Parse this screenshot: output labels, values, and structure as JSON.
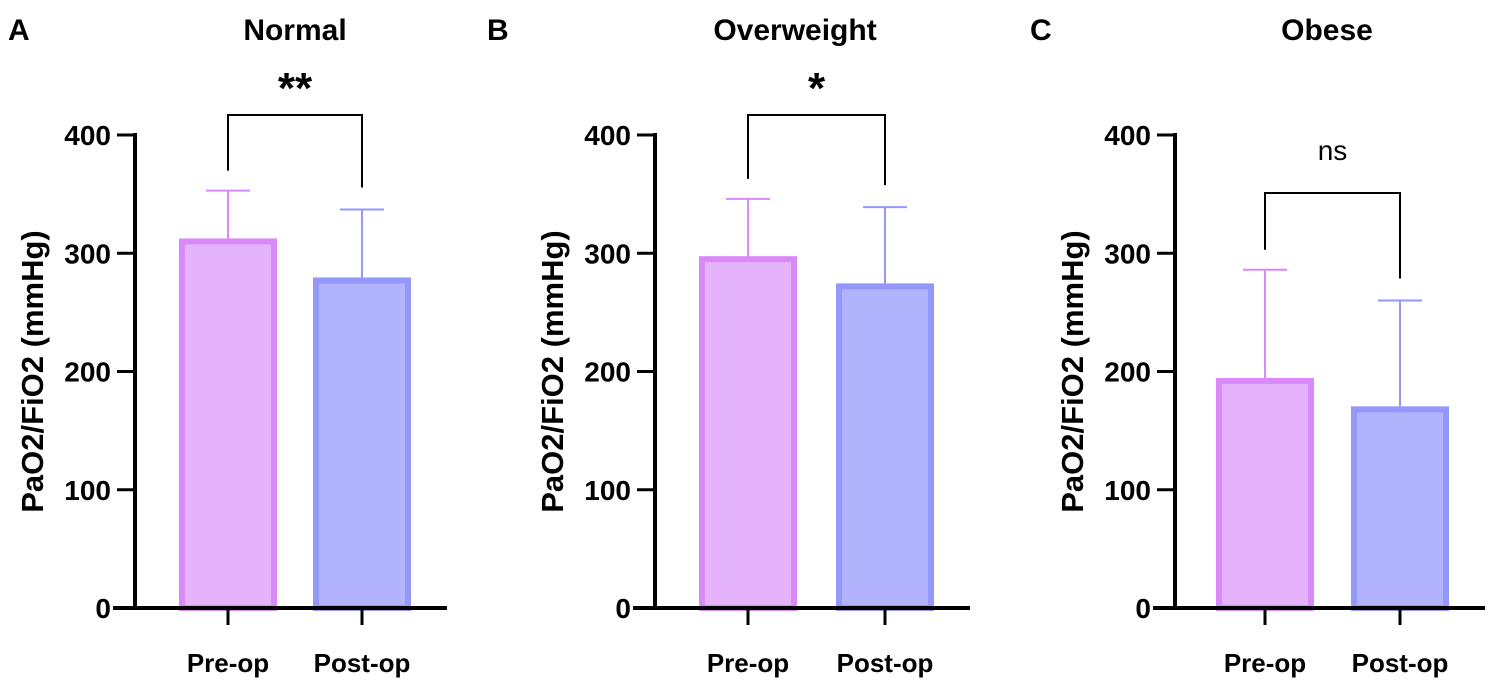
{
  "chart_data": [
    {
      "type": "bar",
      "panel_label": "A",
      "title": "Normal",
      "ylabel": "PaO2/FiO2 (mmHg)",
      "categories": [
        "Pre-op",
        "Post-op"
      ],
      "values": [
        310,
        277
      ],
      "error_upper": [
        353,
        337
      ],
      "ylim": [
        0,
        400
      ],
      "yticks": [
        "0",
        "100",
        "200",
        "300",
        "400"
      ],
      "significance": "**",
      "colors": {
        "fill": [
          "#e5b3fb",
          "#b1b3fd"
        ],
        "stroke": [
          "#d98af8",
          "#9598fb"
        ]
      }
    },
    {
      "type": "bar",
      "panel_label": "B",
      "title": "Overweight",
      "ylabel": "PaO2/FiO2 (mmHg)",
      "categories": [
        "Pre-op",
        "Post-op"
      ],
      "values": [
        295,
        272
      ],
      "error_upper": [
        346,
        339
      ],
      "ylim": [
        0,
        400
      ],
      "yticks": [
        "0",
        "100",
        "200",
        "300",
        "400"
      ],
      "significance": "*",
      "colors": {
        "fill": [
          "#e5b3fb",
          "#b1b3fd"
        ],
        "stroke": [
          "#d98af8",
          "#9598fb"
        ]
      }
    },
    {
      "type": "bar",
      "panel_label": "C",
      "title": "Obese",
      "ylabel": "PaO2/FiO2 (mmHg)",
      "categories": [
        "Pre-op",
        "Post-op"
      ],
      "values": [
        192,
        168
      ],
      "error_upper": [
        286,
        260
      ],
      "ylim": [
        0,
        400
      ],
      "yticks": [
        "0",
        "100",
        "200",
        "300",
        "400"
      ],
      "significance": "ns",
      "colors": {
        "fill": [
          "#e5b3fb",
          "#b1b3fd"
        ],
        "stroke": [
          "#d98af8",
          "#9598fb"
        ]
      }
    }
  ]
}
